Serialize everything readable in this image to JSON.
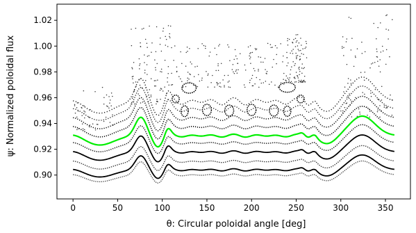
{
  "chart_data": {
    "type": "scatter",
    "title": "",
    "xlabel": "θ: Circular poloidal angle [deg]",
    "ylabel": "ψ: Normalized poloidal flux",
    "xlim": [
      -18,
      378
    ],
    "ylim": [
      0.8815,
      1.0325
    ],
    "x_ticks": [
      0,
      50,
      100,
      150,
      200,
      250,
      300,
      350
    ],
    "x_tick_labels": [
      "0",
      "50",
      "100",
      "150",
      "200",
      "250",
      "300",
      "350"
    ],
    "y_ticks": [
      0.9,
      0.92,
      0.94,
      0.96,
      0.98,
      1.0,
      1.02
    ],
    "y_tick_labels": [
      "0.90",
      "0.92",
      "0.94",
      "0.96",
      "0.98",
      "1.00",
      "1.02"
    ],
    "grid": false,
    "highlight_color": "#00ee00",
    "point_color": "#000000",
    "series": [
      {
        "base": 0.9,
        "amp": 0.0115,
        "tiny": 0.0008,
        "color": "#555555",
        "width": 1.4,
        "dash": "1.4 1.4"
      },
      {
        "base": 0.904,
        "amp": 0.0122,
        "tiny": 0.0009,
        "color": "#000000",
        "width": 1.8,
        "dash": ""
      },
      {
        "base": 0.9105,
        "amp": 0.013,
        "tiny": 0.0009,
        "color": "#333333",
        "width": 1.4,
        "dash": "1.4 1.6"
      },
      {
        "base": 0.9178,
        "amp": 0.014,
        "tiny": 0.001,
        "color": "#000000",
        "width": 1.8,
        "dash": ""
      },
      {
        "base": 0.9248,
        "amp": 0.015,
        "tiny": 0.001,
        "color": "#222222",
        "width": 1.5,
        "dash": "1.4 1.6"
      },
      {
        "base": 0.9305,
        "amp": 0.016,
        "tiny": 0.0012,
        "color": "#00ee00",
        "width": 2.2,
        "dash": ""
      },
      {
        "base": 0.9372,
        "amp": 0.017,
        "tiny": 0.0015,
        "color": "#000000",
        "width": 1.6,
        "dash": "1.2 1.8"
      },
      {
        "base": 0.944,
        "amp": 0.018,
        "tiny": 0.002,
        "color": "#000000",
        "width": 1.5,
        "dash": "1.2 2.0"
      },
      {
        "base": 0.951,
        "amp": 0.019,
        "tiny": 0.0025,
        "color": "#222222",
        "width": 1.4,
        "dash": "1.2 2.2"
      },
      {
        "base": 0.957,
        "amp": 0.02,
        "tiny": 0.003,
        "color": "#111111",
        "width": 1.4,
        "dash": "1.2 2.6"
      }
    ],
    "islands": [
      {
        "x": 125,
        "y": 0.9495,
        "rx": 4,
        "ry": 0.0042
      },
      {
        "x": 150,
        "y": 0.9505,
        "rx": 5,
        "ry": 0.0044
      },
      {
        "x": 175,
        "y": 0.95,
        "rx": 5,
        "ry": 0.0043
      },
      {
        "x": 200,
        "y": 0.9505,
        "rx": 5,
        "ry": 0.0044
      },
      {
        "x": 225,
        "y": 0.95,
        "rx": 5,
        "ry": 0.0043
      },
      {
        "x": 240,
        "y": 0.9495,
        "rx": 4,
        "ry": 0.004
      },
      {
        "x": 130,
        "y": 0.9675,
        "rx": 8,
        "ry": 0.004
      },
      {
        "x": 240,
        "y": 0.968,
        "rx": 9,
        "ry": 0.0038
      },
      {
        "x": 115,
        "y": 0.959,
        "rx": 4,
        "ry": 0.003
      },
      {
        "x": 255,
        "y": 0.959,
        "rx": 4,
        "ry": 0.003
      }
    ],
    "scatter_seed": 7,
    "scatter_count": 520
  }
}
